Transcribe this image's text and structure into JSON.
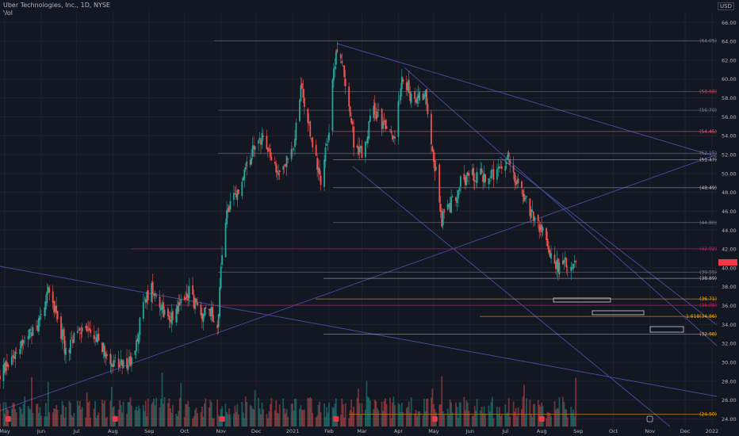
{
  "header": {
    "title": "Uber Technologies, Inc., 1D, NYSE",
    "sub": "Vol"
  },
  "currency": "USD",
  "colors": {
    "background": "#131722",
    "up": "#26a69a",
    "down": "#ef5350",
    "grid": "#1e222d",
    "trend": "#3f4b9a",
    "axis_text": "#b2b5be"
  },
  "last_price": "",
  "chart_data": {
    "type": "candlestick",
    "title": "Uber Technologies, Inc., 1D, NYSE",
    "y_scale": "linear",
    "y_ticks": [
      24.0,
      26.0,
      28.0,
      30.0,
      32.0,
      34.0,
      36.0,
      38.0,
      40.0,
      42.0,
      44.0,
      46.0,
      48.0,
      50.0,
      52.0,
      54.0,
      56.0,
      58.0,
      60.0,
      62.0,
      64.0,
      66.0
    ],
    "y_tick_labels": [
      "24.00",
      "26.00",
      "28.00",
      "30.00",
      "32.00",
      "34.00",
      "36.00",
      "38.00",
      "40.00",
      "42.00",
      "44.00",
      "46.00",
      "48.00",
      "50.00",
      "52.00",
      "54.00",
      "56.00",
      "58.00",
      "60.00",
      "62.00",
      "64.00",
      "66.00"
    ],
    "x_tick_labels": [
      "May",
      "Jun",
      "Jul",
      "Aug",
      "Sep",
      "Oct",
      "Nov",
      "Dec",
      "2021",
      "Feb",
      "Mar",
      "Apr",
      "May",
      "Jun",
      "Jul",
      "Aug",
      "Sep",
      "Oct",
      "Nov",
      "Dec",
      "2022"
    ],
    "x_range": [
      "2020-05-01",
      "2022-01-01"
    ],
    "y_range": [
      23.2,
      67.2
    ],
    "levels": [
      {
        "label": "(64.05)",
        "value": 64.05,
        "color": "#787b86"
      },
      {
        "label": "(58.68)",
        "value": 58.68,
        "color": "#f23645"
      },
      {
        "label": "(56.70)",
        "value": 56.7,
        "color": "#787b86"
      },
      {
        "label": "(54.45)",
        "value": 54.45,
        "color": "#f7525f"
      },
      {
        "label": "(52.15)",
        "value": 52.15,
        "color": "#787b86"
      },
      {
        "label": "(51.47)",
        "value": 51.47,
        "color": "#b2b5be"
      },
      {
        "label": "(48.49)",
        "value": 48.49,
        "color": "#b2b5be"
      },
      {
        "label": "(44.80)",
        "value": 44.8,
        "color": "#787b86"
      },
      {
        "label": "(42.02)",
        "value": 42.02,
        "color": "#d81b60"
      },
      {
        "label": "(39.55)",
        "value": 39.55,
        "color": "#787b86"
      },
      {
        "label": "(38.89)",
        "value": 38.89,
        "color": "#b2b5be"
      },
      {
        "label": "(36.71)",
        "value": 36.71,
        "color": "#f7a600"
      },
      {
        "label": "(36.05)",
        "value": 36.05,
        "color": "#d81b60"
      },
      {
        "label": "1.618(34.86)",
        "value": 34.86,
        "color": "#f7a600"
      },
      {
        "label": "(32.98)",
        "value": 32.98,
        "color": "#f7a600"
      },
      {
        "label": "(24.50)",
        "value": 24.5,
        "color": "#f7a600"
      }
    ],
    "price_path": [
      [
        "2020-05-01",
        28.5
      ],
      [
        "2020-05-15",
        31.5
      ],
      [
        "2020-06-01",
        33.5
      ],
      [
        "2020-06-10",
        37.5
      ],
      [
        "2020-06-18",
        35.5
      ],
      [
        "2020-06-26",
        31.0
      ],
      [
        "2020-07-08",
        33.5
      ],
      [
        "2020-07-20",
        33.0
      ],
      [
        "2020-07-30",
        31.0
      ],
      [
        "2020-08-10",
        29.5
      ],
      [
        "2020-08-21",
        30.0
      ],
      [
        "2020-09-01",
        36.5
      ],
      [
        "2020-09-08",
        38.0
      ],
      [
        "2020-09-21",
        34.5
      ],
      [
        "2020-09-30",
        36.0
      ],
      [
        "2020-10-09",
        37.5
      ],
      [
        "2020-10-19",
        35.0
      ],
      [
        "2020-10-28",
        35.5
      ],
      [
        "2020-11-02",
        33.5
      ],
      [
        "2020-11-06",
        41.5
      ],
      [
        "2020-11-10",
        46.0
      ],
      [
        "2020-11-20",
        48.0
      ],
      [
        "2020-12-01",
        52.0
      ],
      [
        "2020-12-10",
        54.0
      ],
      [
        "2020-12-22",
        50.0
      ],
      [
        "2021-01-05",
        52.0
      ],
      [
        "2021-01-12",
        59.0
      ],
      [
        "2021-01-22",
        53.0
      ],
      [
        "2021-01-29",
        49.5
      ],
      [
        "2021-02-05",
        55.0
      ],
      [
        "2021-02-11",
        63.5
      ],
      [
        "2021-02-19",
        60.0
      ],
      [
        "2021-02-26",
        53.5
      ],
      [
        "2021-03-05",
        52.0
      ],
      [
        "2021-03-15",
        57.0
      ],
      [
        "2021-03-24",
        55.0
      ],
      [
        "2021-04-01",
        53.5
      ],
      [
        "2021-04-09",
        60.5
      ],
      [
        "2021-04-16",
        58.0
      ],
      [
        "2021-04-28",
        58.5
      ],
      [
        "2021-05-05",
        52.0
      ],
      [
        "2021-05-12",
        45.0
      ],
      [
        "2021-05-19",
        46.5
      ],
      [
        "2021-05-28",
        49.0
      ],
      [
        "2021-06-07",
        50.0
      ],
      [
        "2021-06-21",
        49.5
      ],
      [
        "2021-06-30",
        50.0
      ],
      [
        "2021-07-07",
        51.5
      ],
      [
        "2021-07-16",
        49.0
      ],
      [
        "2021-07-26",
        46.0
      ],
      [
        "2021-08-05",
        44.0
      ],
      [
        "2021-08-13",
        41.5
      ],
      [
        "2021-08-20",
        40.0
      ],
      [
        "2021-08-27",
        40.5
      ],
      [
        "2021-09-03",
        40.0
      ]
    ]
  }
}
